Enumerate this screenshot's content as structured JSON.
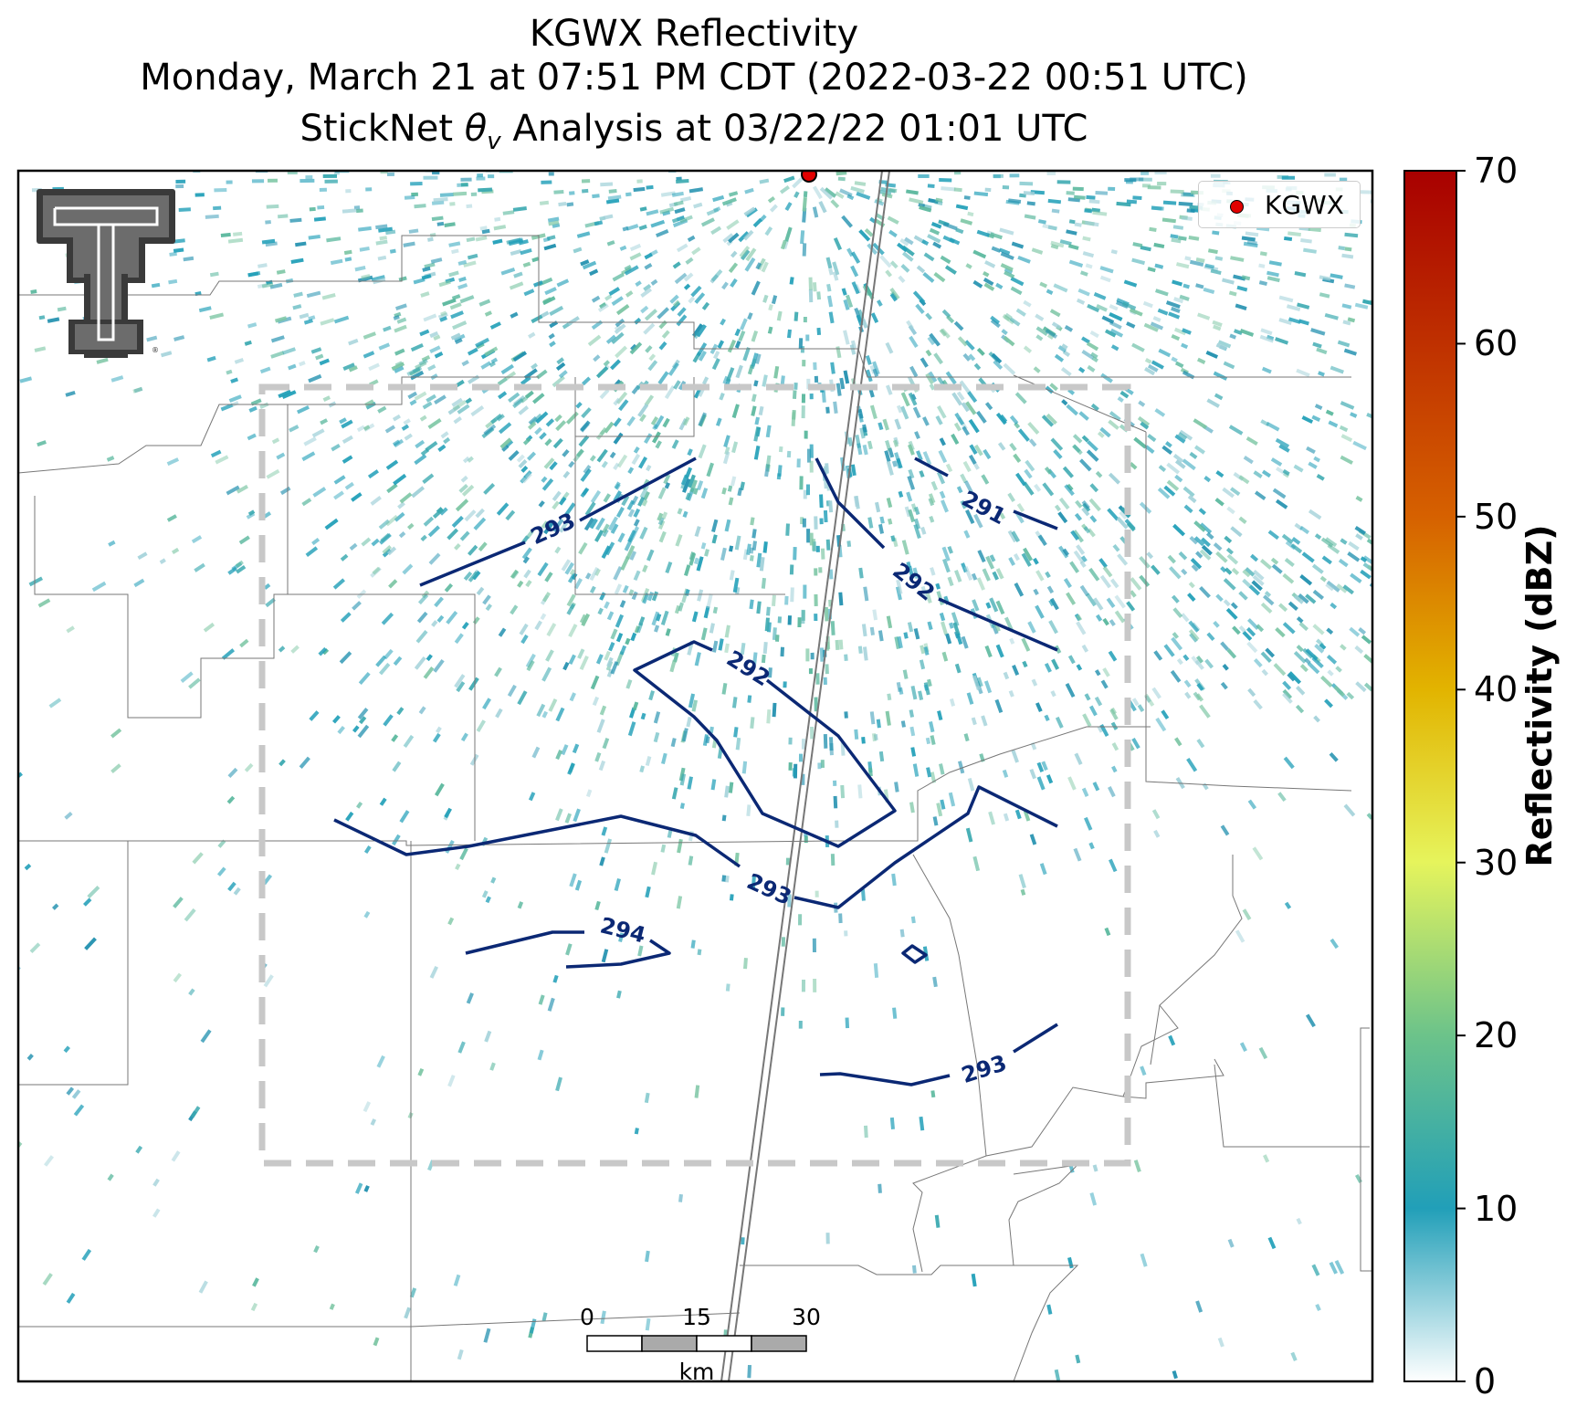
{
  "title": {
    "line1": "KGWX Reflectivity",
    "line2": "Monday, March 21 at 07:51 PM CDT (2022-03-22 00:51 UTC)",
    "line3_prefix": "StickNet ",
    "line3_symbol": "θ",
    "line3_subscript": "v",
    "line3_suffix": " Analysis at 03/22/22 01:01 UTC"
  },
  "legend": {
    "station_label": "KGWX",
    "marker_color": "#e10000"
  },
  "colorbar": {
    "label": "Reflectivity (dBZ)",
    "ticks": [
      "0",
      "10",
      "20",
      "30",
      "40",
      "50",
      "60",
      "70"
    ],
    "min": 0,
    "max": 70,
    "colors": [
      "#ffffff",
      "#219fb8",
      "#6cc38a",
      "#e6f45c",
      "#e2b400",
      "#d66100",
      "#a80000"
    ]
  },
  "contours": {
    "color": "#0b2874",
    "labels": [
      "293",
      "291",
      "292",
      "292",
      "293",
      "294",
      "293"
    ]
  },
  "scale_bar": {
    "ticks": [
      "0",
      "15",
      "30"
    ],
    "unit": "km"
  },
  "logo": {
    "letter": "T"
  },
  "colors": {
    "radar_echo": "#219fb8",
    "analysis_box": "#c8c8c8",
    "boundaries": "#777777"
  }
}
